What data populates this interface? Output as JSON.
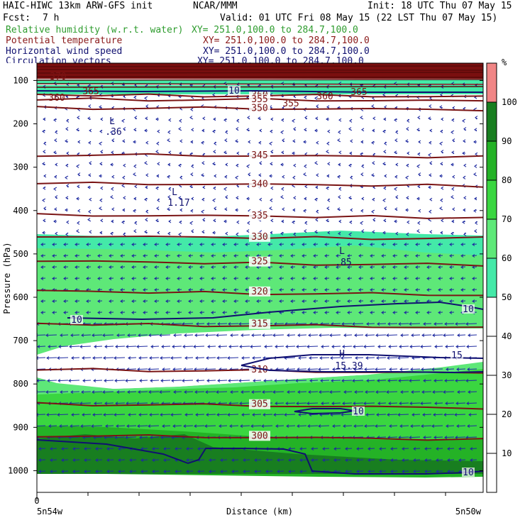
{
  "header": {
    "model": "HAIC-HIWC 13km ARW-GFS init",
    "agency": "NCAR/MMM",
    "init": "Init: 18 UTC Thu 07 May 15",
    "fcst_label": "Fcst:",
    "fcst_value": "7 h",
    "valid": "Valid: 01 UTC Fri 08 May 15 (22 LST Thu 07 May 15)",
    "fields": [
      {
        "name": "Relative humidity (w.r.t. water)",
        "xy": "XY= 251.0,100.0 to 284.7,100.0",
        "color": "#2e9c2e"
      },
      {
        "name": "Potential temperature",
        "xy": "XY= 251.0,100.0 to 284.7,100.0",
        "color": "#8b1a1a"
      },
      {
        "name": "Horizontal wind speed",
        "xy": "XY= 251.0,100.0 to 284.7,100.0",
        "color": "#101070"
      },
      {
        "name": "Circulation vectors",
        "xy": "XY= 251.0,100.0 to 284.7,100.0",
        "color": "#101070"
      }
    ]
  },
  "chart_data": {
    "type": "cross-section",
    "ylabel": "Pressure (hPa)",
    "xlabel": "Distance (km)",
    "x_start_tick": "0",
    "x_left_label": "5n54w",
    "x_right_label": "5n50w",
    "y_ticks": [
      100,
      200,
      300,
      400,
      500,
      600,
      700,
      800,
      900,
      1000
    ],
    "ylim": [
      1050,
      60
    ],
    "colorbar": {
      "unit": "%",
      "ticks": [
        10,
        20,
        30,
        40,
        50,
        60,
        70,
        80,
        90,
        100
      ],
      "levels": [
        {
          "from": 50,
          "to": 60,
          "color": "#44e9a8"
        },
        {
          "from": 60,
          "to": 70,
          "color": "#5ee878"
        },
        {
          "from": 70,
          "to": 80,
          "color": "#3ad640"
        },
        {
          "from": 80,
          "to": 90,
          "color": "#24b226"
        },
        {
          "from": 90,
          "to": 100,
          "color": "#187e20"
        },
        {
          "from": 100,
          "to": 110,
          "color": "#f08585"
        }
      ]
    },
    "theta_isentropes": [
      {
        "value": 360,
        "label": "360",
        "p": 132
      },
      {
        "value": 355,
        "label": "355",
        "p": 142
      },
      {
        "value": 350,
        "label": "350",
        "p": 162
      },
      {
        "value": 345,
        "label": "345",
        "p": 271
      },
      {
        "value": 340,
        "label": "340",
        "p": 337
      },
      {
        "value": 335,
        "label": "335",
        "p": 410
      },
      {
        "value": 330,
        "label": "330",
        "p": 459
      },
      {
        "value": 325,
        "label": "325",
        "p": 516
      },
      {
        "value": 320,
        "label": "320",
        "p": 585
      },
      {
        "value": 315,
        "label": "315",
        "p": 660
      },
      {
        "value": 310,
        "label": "310",
        "p": 765
      },
      {
        "value": 305,
        "label": "305",
        "p": 845
      },
      {
        "value": 300,
        "label": "300",
        "p": 918
      }
    ],
    "theta_other_labels": [
      "365",
      "370"
    ],
    "wind_speed_labels": [
      "10",
      "10",
      "15",
      "10",
      "10",
      "10"
    ],
    "extrema": [
      {
        "kind": "L",
        "value": ".36"
      },
      {
        "kind": "L",
        "value": "1.17"
      },
      {
        "kind": "L",
        "value": ".85"
      },
      {
        "kind": "H",
        "value": "15.39"
      }
    ]
  }
}
